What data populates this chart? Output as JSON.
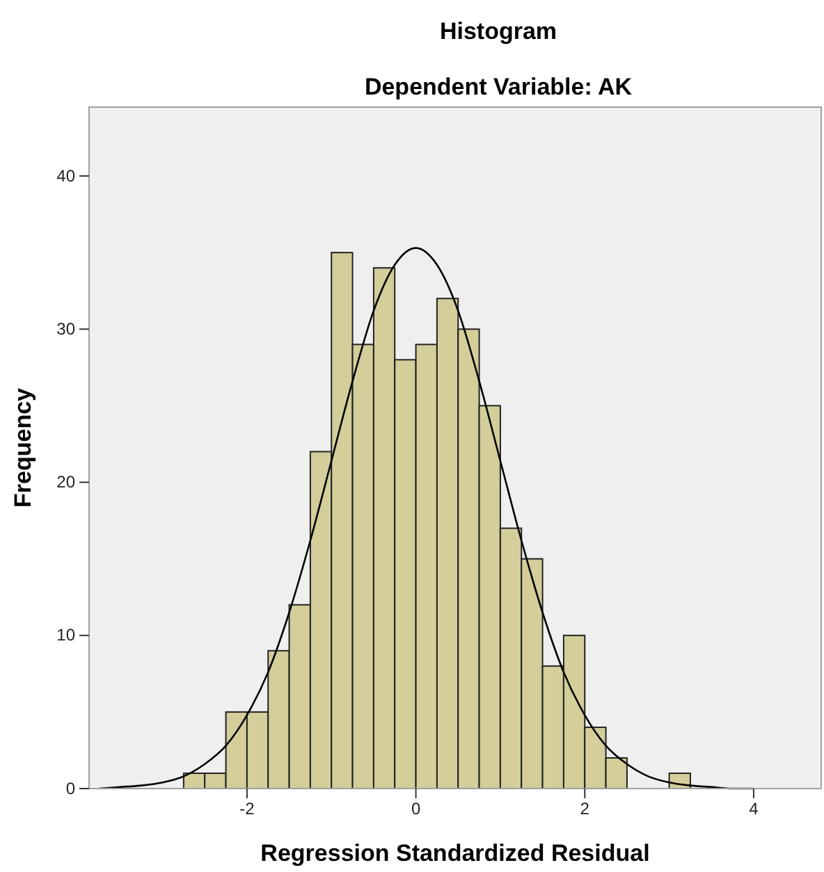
{
  "chart_data": {
    "type": "histogram",
    "title": "Histogram",
    "subtitle": "Dependent Variable: AK",
    "xlabel": "Regression Standardized Residual",
    "ylabel": "Frequency",
    "bins": [
      -2.75,
      -2.5,
      -2.25,
      -2,
      -1.75,
      -1.5,
      -1.25,
      -1,
      -0.75,
      -0.5,
      -0.25,
      0,
      0.25,
      0.5,
      0.75,
      1,
      1.25,
      1.5,
      1.75,
      2,
      2.25,
      2.5,
      2.75,
      3,
      3.25
    ],
    "values": [
      1,
      1,
      5,
      5,
      9,
      12,
      22,
      35,
      29,
      34,
      28,
      29,
      32,
      30,
      25,
      17,
      15,
      8,
      10,
      4,
      2,
      0,
      0,
      1
    ],
    "color": "#d3ce9a",
    "series": [
      {
        "type": "line",
        "color": "#000000",
        "x": [
          -3.75,
          -3.5,
          -3.25,
          -3,
          -2.75,
          -2.5,
          -2.25,
          -2,
          -1.75,
          -1.5,
          -1.25,
          -1,
          -0.75,
          -0.5,
          -0.25,
          0,
          0.25,
          0.5,
          0.75,
          1,
          1.25,
          1.5,
          1.75,
          2,
          2.25,
          2.5,
          2.75,
          3,
          3.25,
          3.5,
          3.75,
          4
        ],
        "values": [
          0,
          0.1,
          0.2,
          0.4,
          0.8,
          1.6,
          2.8,
          4.8,
          7.6,
          11.5,
          16.2,
          21.4,
          26.6,
          31.2,
          34.2,
          35.3,
          34.2,
          31.2,
          26.6,
          21.4,
          16.2,
          11.5,
          7.6,
          4.8,
          2.8,
          1.6,
          0.8,
          0.4,
          0.2,
          0.1,
          0,
          0
        ]
      }
    ],
    "xlim": [
      -3.87,
      4.8
    ],
    "xticks": [
      -2,
      0,
      2,
      4
    ],
    "ylim": [
      0,
      44.5
    ],
    "yticks": [
      0,
      10,
      20,
      30,
      40
    ],
    "grid": false
  }
}
